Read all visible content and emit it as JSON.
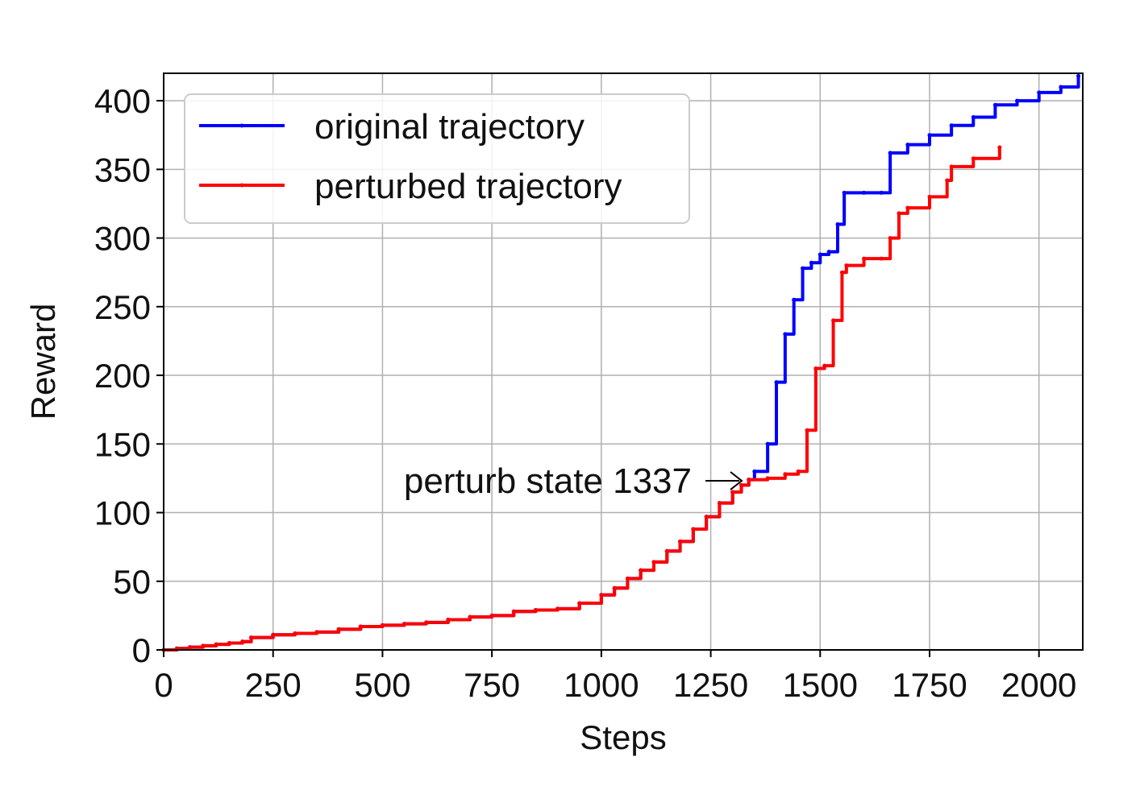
{
  "chart_data": {
    "type": "line",
    "xlabel": "Steps",
    "ylabel": "Reward",
    "xlim": [
      0,
      2100
    ],
    "ylim": [
      0,
      420
    ],
    "xticks": [
      0,
      250,
      500,
      750,
      1000,
      1250,
      1500,
      1750,
      2000
    ],
    "yticks": [
      0,
      50,
      100,
      150,
      200,
      250,
      300,
      350,
      400
    ],
    "xtick_labels": [
      "0",
      "250",
      "500",
      "750",
      "1000",
      "1250",
      "1500",
      "1750",
      "2000"
    ],
    "ytick_labels": [
      "0",
      "50",
      "100",
      "150",
      "200",
      "250",
      "300",
      "350",
      "400"
    ],
    "grid": true,
    "legend_position": "top-left",
    "series": [
      {
        "name": "original trajectory",
        "color": "#0000ff",
        "x": [
          0,
          30,
          60,
          90,
          120,
          150,
          180,
          200,
          250,
          300,
          350,
          400,
          450,
          500,
          550,
          600,
          650,
          700,
          750,
          800,
          850,
          900,
          950,
          1000,
          1030,
          1060,
          1090,
          1120,
          1150,
          1180,
          1210,
          1240,
          1270,
          1300,
          1320,
          1337,
          1350,
          1380,
          1400,
          1420,
          1440,
          1460,
          1480,
          1500,
          1520,
          1540,
          1555,
          1600,
          1640,
          1660,
          1700,
          1750,
          1800,
          1850,
          1900,
          1950,
          2000,
          2050,
          2090
        ],
        "y": [
          0,
          1,
          2,
          3,
          4,
          5,
          6,
          9,
          11,
          12,
          13,
          15,
          17,
          18,
          19,
          20,
          22,
          24,
          25,
          28,
          29,
          30,
          34,
          40,
          45,
          52,
          58,
          64,
          72,
          79,
          88,
          97,
          107,
          115,
          120,
          124,
          130,
          150,
          195,
          230,
          255,
          278,
          282,
          288,
          290,
          310,
          333,
          333,
          333,
          362,
          368,
          375,
          382,
          388,
          397,
          400,
          406,
          410,
          418
        ]
      },
      {
        "name": "perturbed trajectory",
        "color": "#ff0000",
        "x": [
          0,
          30,
          60,
          90,
          120,
          150,
          180,
          200,
          250,
          300,
          350,
          400,
          450,
          500,
          550,
          600,
          650,
          700,
          750,
          800,
          850,
          900,
          950,
          1000,
          1030,
          1060,
          1090,
          1120,
          1150,
          1180,
          1210,
          1240,
          1270,
          1300,
          1320,
          1337,
          1380,
          1420,
          1450,
          1470,
          1490,
          1510,
          1530,
          1550,
          1560,
          1600,
          1640,
          1660,
          1680,
          1700,
          1750,
          1790,
          1800,
          1850,
          1910
        ],
        "y": [
          0,
          1,
          2,
          3,
          4,
          5,
          6,
          9,
          11,
          12,
          13,
          15,
          17,
          18,
          19,
          20,
          22,
          24,
          25,
          28,
          29,
          30,
          34,
          40,
          45,
          52,
          58,
          64,
          72,
          79,
          88,
          97,
          107,
          115,
          120,
          124,
          125,
          128,
          130,
          160,
          205,
          207,
          240,
          275,
          280,
          285,
          285,
          300,
          318,
          322,
          330,
          342,
          352,
          358,
          366
        ]
      }
    ],
    "annotations": [
      {
        "text": "perturb state 1337",
        "x": 1337,
        "y": 124,
        "arrow": true
      }
    ]
  }
}
